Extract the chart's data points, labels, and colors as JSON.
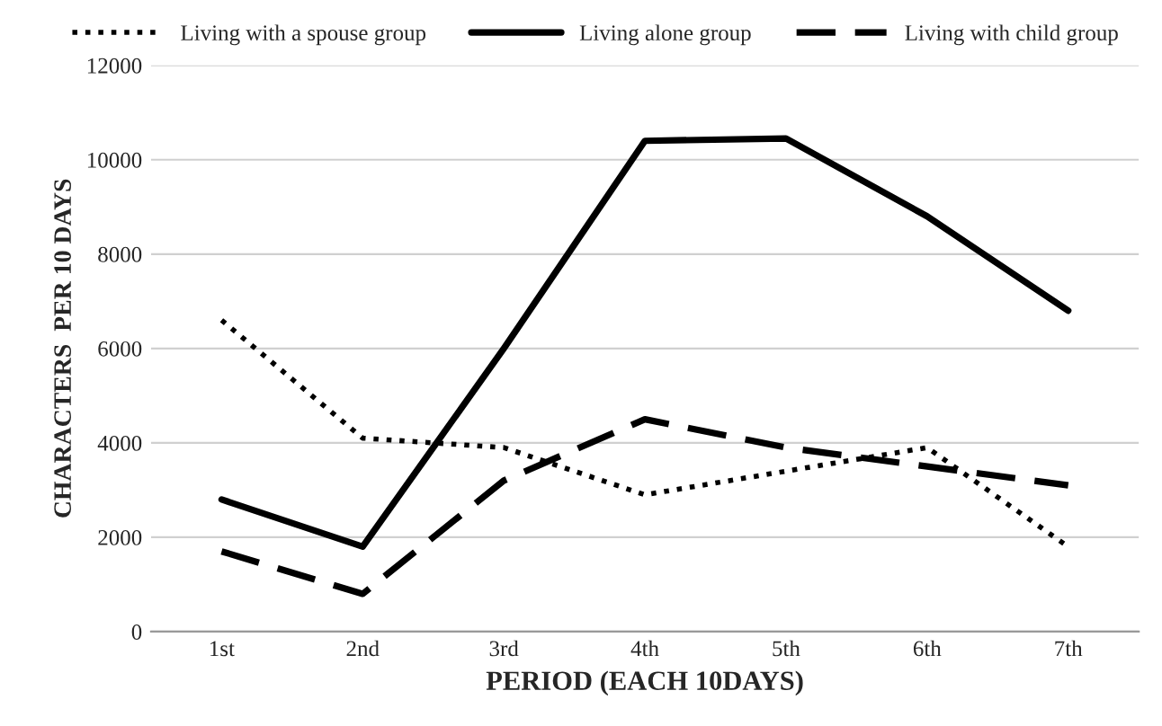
{
  "chart_data": {
    "type": "line",
    "xlabel": "PERIOD (EACH 10DAYS)",
    "ylabel": "CHARACTERS  PER 10 DAYS",
    "categories": [
      "1st",
      "2nd",
      "3rd",
      "4th",
      "5th",
      "6th",
      "7th"
    ],
    "series": [
      {
        "name": "Living with a spouse group",
        "color": "#000000",
        "line_style": "dotted",
        "values": [
          6600,
          4100,
          3900,
          2900,
          3400,
          3900,
          1800
        ]
      },
      {
        "name": "Living alone group",
        "color": "#000000",
        "line_style": "solid",
        "values": [
          2800,
          1800,
          6000,
          10400,
          10450,
          8800,
          6800
        ]
      },
      {
        "name": "Living with child group",
        "color": "#000000",
        "line_style": "dashed",
        "values": [
          1700,
          800,
          3200,
          4500,
          3900,
          3500,
          3100
        ]
      }
    ],
    "ylim": [
      0,
      12000
    ],
    "yticks": [
      0,
      2000,
      4000,
      6000,
      8000,
      10000,
      12000
    ],
    "grid": "y",
    "legend": "top",
    "marker": "none"
  }
}
